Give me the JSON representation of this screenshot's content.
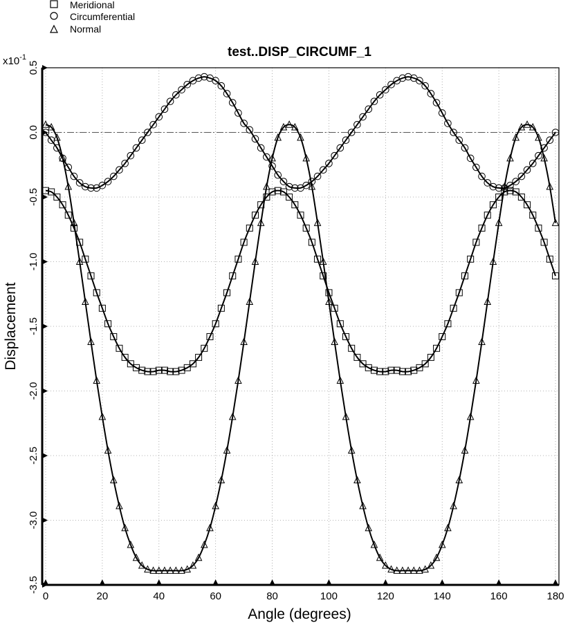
{
  "chart_data": {
    "type": "line",
    "title": "test..DISP_CIRCUMF_1",
    "xlabel": "Angle (degrees)",
    "ylabel": "Displacement",
    "y_multiplier_label": "x10",
    "y_multiplier_exponent": "-1",
    "xlim": [
      0,
      180
    ],
    "ylim": [
      -3.5,
      0.5
    ],
    "x_ticks": [
      0,
      20,
      40,
      60,
      80,
      100,
      120,
      140,
      160,
      180
    ],
    "x_tick_labels": [
      "0",
      "20",
      "40",
      "60",
      "80",
      "100",
      "120",
      "140",
      "160",
      "180"
    ],
    "y_ticks": [
      0.5,
      0.0,
      -0.5,
      -1.0,
      -1.5,
      -2.0,
      -2.5,
      -3.0,
      -3.5
    ],
    "y_tick_labels": [
      "0.5",
      "0.0",
      "-0.5",
      "-1.0",
      "-1.5",
      "-2.0",
      "-2.5",
      "-3.0",
      "-3.5"
    ],
    "grid": true,
    "zero_line": true,
    "legend_position": "top-left",
    "series": [
      {
        "name": "Meridional",
        "marker": "square",
        "x": [
          0,
          2,
          4,
          6,
          8,
          10,
          12,
          14,
          16,
          18,
          20,
          22,
          24,
          26,
          28,
          30,
          32,
          34,
          36,
          38,
          40,
          42,
          44,
          46,
          48,
          50,
          52,
          54,
          56,
          58,
          60,
          62,
          64,
          66,
          68,
          70,
          72,
          74,
          76,
          78,
          80,
          82,
          84,
          86,
          88,
          90,
          92,
          94,
          96,
          98,
          100,
          102,
          104,
          106,
          108,
          110,
          112,
          114,
          116,
          118,
          120,
          122,
          124,
          126,
          128,
          130,
          132,
          134,
          136,
          138,
          140,
          142,
          144,
          146,
          148,
          150,
          152,
          154,
          156,
          158,
          160,
          162,
          164,
          166,
          168,
          170,
          172,
          174,
          176,
          178,
          180
        ],
        "y": [
          -0.45,
          -0.46,
          -0.5,
          -0.56,
          -0.64,
          -0.74,
          -0.85,
          -0.98,
          -1.11,
          -1.24,
          -1.36,
          -1.48,
          -1.58,
          -1.67,
          -1.74,
          -1.79,
          -1.82,
          -1.84,
          -1.85,
          -1.85,
          -1.84,
          -1.84,
          -1.85,
          -1.85,
          -1.84,
          -1.82,
          -1.79,
          -1.74,
          -1.67,
          -1.58,
          -1.48,
          -1.36,
          -1.24,
          -1.11,
          -0.98,
          -0.85,
          -0.74,
          -0.64,
          -0.56,
          -0.5,
          -0.46,
          -0.45,
          -0.46,
          -0.5,
          -0.56,
          -0.64,
          -0.74,
          -0.85,
          -0.98,
          -1.11,
          -1.24,
          -1.36,
          -1.48,
          -1.58,
          -1.67,
          -1.74,
          -1.79,
          -1.82,
          -1.84,
          -1.85,
          -1.85,
          -1.84,
          -1.84,
          -1.85,
          -1.85,
          -1.84,
          -1.82,
          -1.79,
          -1.74,
          -1.67,
          -1.58,
          -1.48,
          -1.36,
          -1.24,
          -1.11,
          -0.98,
          -0.85,
          -0.74,
          -0.64,
          -0.56,
          -0.5,
          -0.46,
          -0.45,
          -0.46,
          -0.5,
          -0.56,
          -0.64,
          -0.74,
          -0.85,
          -0.98,
          -1.11
        ]
      },
      {
        "name": "Circumferential",
        "marker": "circle",
        "x": [
          0,
          2,
          4,
          6,
          8,
          10,
          12,
          14,
          16,
          18,
          20,
          22,
          24,
          26,
          28,
          30,
          32,
          34,
          36,
          38,
          40,
          42,
          44,
          46,
          48,
          50,
          52,
          54,
          56,
          58,
          60,
          62,
          64,
          66,
          68,
          70,
          72,
          74,
          76,
          78,
          80,
          82,
          84,
          86,
          88,
          90,
          92,
          94,
          96,
          98,
          100,
          102,
          104,
          106,
          108,
          110,
          112,
          114,
          116,
          118,
          120,
          122,
          124,
          126,
          128,
          130,
          132,
          134,
          136,
          138,
          140,
          142,
          144,
          146,
          148,
          150,
          152,
          154,
          156,
          158,
          160,
          162,
          164,
          166,
          168,
          170,
          172,
          174,
          176,
          178,
          180
        ],
        "y": [
          0.0,
          -0.06,
          -0.12,
          -0.2,
          -0.27,
          -0.34,
          -0.39,
          -0.42,
          -0.43,
          -0.43,
          -0.41,
          -0.38,
          -0.34,
          -0.29,
          -0.24,
          -0.18,
          -0.12,
          -0.06,
          0.0,
          0.06,
          0.12,
          0.18,
          0.24,
          0.29,
          0.33,
          0.37,
          0.4,
          0.42,
          0.43,
          0.42,
          0.4,
          0.36,
          0.3,
          0.23,
          0.15,
          0.07,
          0.02,
          -0.05,
          -0.12,
          -0.19,
          -0.26,
          -0.33,
          -0.38,
          -0.42,
          -0.43,
          -0.43,
          -0.41,
          -0.38,
          -0.34,
          -0.29,
          -0.24,
          -0.18,
          -0.12,
          -0.06,
          0.0,
          0.06,
          0.12,
          0.18,
          0.24,
          0.29,
          0.33,
          0.37,
          0.4,
          0.42,
          0.43,
          0.42,
          0.4,
          0.36,
          0.3,
          0.23,
          0.15,
          0.07,
          0.0,
          -0.06,
          -0.12,
          -0.2,
          -0.27,
          -0.34,
          -0.39,
          -0.42,
          -0.43,
          -0.43,
          -0.41,
          -0.38,
          -0.34,
          -0.29,
          -0.24,
          -0.18,
          -0.12,
          -0.06,
          0.0
        ]
      },
      {
        "name": "Normal",
        "marker": "triangle",
        "x": [
          0,
          2,
          4,
          6,
          8,
          10,
          12,
          14,
          16,
          18,
          20,
          22,
          24,
          26,
          28,
          30,
          32,
          34,
          36,
          38,
          40,
          42,
          44,
          46,
          48,
          50,
          52,
          54,
          56,
          58,
          60,
          62,
          64,
          66,
          68,
          70,
          72,
          74,
          76,
          78,
          80,
          82,
          84,
          86,
          88,
          90,
          92,
          94,
          96,
          98,
          100,
          102,
          104,
          106,
          108,
          110,
          112,
          114,
          116,
          118,
          120,
          122,
          124,
          126,
          128,
          130,
          132,
          134,
          136,
          138,
          140,
          142,
          144,
          146,
          148,
          150,
          152,
          154,
          156,
          158,
          160,
          162,
          164,
          166,
          168,
          170,
          172,
          174,
          176,
          178,
          180
        ],
        "y": [
          0.06,
          0.04,
          -0.04,
          -0.2,
          -0.42,
          -0.7,
          -1.0,
          -1.31,
          -1.62,
          -1.92,
          -2.2,
          -2.46,
          -2.69,
          -2.89,
          -3.06,
          -3.19,
          -3.29,
          -3.35,
          -3.38,
          -3.39,
          -3.39,
          -3.39,
          -3.39,
          -3.39,
          -3.39,
          -3.38,
          -3.35,
          -3.29,
          -3.19,
          -3.06,
          -2.89,
          -2.69,
          -2.46,
          -2.2,
          -1.92,
          -1.62,
          -1.31,
          -1.0,
          -0.7,
          -0.42,
          -0.2,
          -0.04,
          0.04,
          0.06,
          0.04,
          -0.04,
          -0.2,
          -0.42,
          -0.7,
          -1.0,
          -1.31,
          -1.62,
          -1.92,
          -2.2,
          -2.46,
          -2.69,
          -2.89,
          -3.06,
          -3.19,
          -3.29,
          -3.35,
          -3.38,
          -3.39,
          -3.39,
          -3.39,
          -3.39,
          -3.39,
          -3.38,
          -3.35,
          -3.29,
          -3.19,
          -3.06,
          -2.89,
          -2.69,
          -2.46,
          -2.2,
          -1.92,
          -1.62,
          -1.31,
          -1.0,
          -0.7,
          -0.42,
          -0.2,
          -0.04,
          0.04,
          0.06,
          0.04,
          -0.04,
          -0.2,
          -0.42,
          -0.7
        ]
      }
    ]
  }
}
